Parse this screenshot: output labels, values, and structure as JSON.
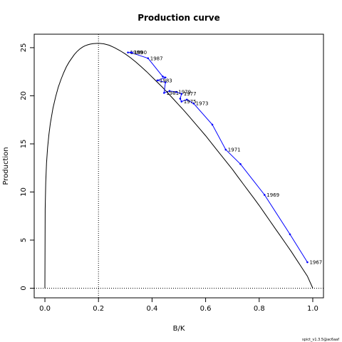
{
  "chart_data": {
    "type": "line",
    "title": "Production curve",
    "xlabel": "B/K",
    "ylabel": "Production",
    "xlim": [
      -0.04,
      1.04
    ],
    "ylim": [
      -1.0,
      26.4
    ],
    "x_ticks": [
      "0.0",
      "0.2",
      "0.4",
      "0.6",
      "0.8",
      "1.0"
    ],
    "x_tick_values": [
      0.0,
      0.2,
      0.4,
      0.6,
      0.8,
      1.0
    ],
    "y_ticks": [
      "0",
      "5",
      "10",
      "15",
      "20",
      "25"
    ],
    "y_tick_values": [
      0,
      5,
      10,
      15,
      20,
      25
    ],
    "bmsy_over_k": 0.2,
    "zero_line": 0,
    "grid": false,
    "curve_color": "#000000",
    "observed_color": "#0000ff",
    "curve": {
      "name": "",
      "x": [
        0.0,
        0.001,
        0.003,
        0.006,
        0.01,
        0.015,
        0.02,
        0.03,
        0.04,
        0.05,
        0.06,
        0.07,
        0.08,
        0.09,
        0.1,
        0.11,
        0.12,
        0.13,
        0.14,
        0.15,
        0.16,
        0.17,
        0.18,
        0.19,
        0.2,
        0.22,
        0.24,
        0.26,
        0.28,
        0.3,
        0.32,
        0.34,
        0.36,
        0.38,
        0.4,
        0.42,
        0.44,
        0.46,
        0.48,
        0.5,
        0.52,
        0.54,
        0.56,
        0.58,
        0.6,
        0.62,
        0.64,
        0.66,
        0.68,
        0.7,
        0.72,
        0.74,
        0.76,
        0.78,
        0.8,
        0.82,
        0.84,
        0.86,
        0.88,
        0.9,
        0.92,
        0.94,
        0.96,
        0.98,
        1.0
      ],
      "y": [
        0.0,
        8.2,
        11.0,
        13.0,
        14.6,
        16.0,
        17.1,
        18.7,
        19.9,
        20.9,
        21.7,
        22.4,
        23.0,
        23.5,
        23.9,
        24.3,
        24.6,
        24.85,
        25.05,
        25.2,
        25.3,
        25.37,
        25.42,
        25.44,
        25.45,
        25.4,
        25.25,
        25.0,
        24.7,
        24.35,
        23.95,
        23.5,
        23.0,
        22.5,
        21.95,
        21.4,
        20.85,
        20.25,
        19.65,
        19.05,
        18.45,
        17.8,
        17.15,
        16.5,
        15.85,
        15.15,
        14.45,
        13.75,
        13.05,
        12.35,
        11.6,
        10.85,
        10.1,
        9.35,
        8.6,
        7.8,
        7.0,
        6.2,
        5.4,
        4.6,
        3.8,
        2.95,
        2.1,
        1.25,
        0.0
      ]
    },
    "series": [
      {
        "name": "",
        "x": [
          0.98,
          0.915,
          0.82,
          0.73,
          0.675,
          0.625,
          0.555,
          0.53,
          0.51,
          0.505,
          0.51,
          0.49,
          0.465,
          0.445,
          0.45,
          0.42,
          0.45,
          0.44,
          0.385,
          0.32,
          0.31,
          0.325
        ],
        "y": [
          2.7,
          5.6,
          9.7,
          12.9,
          14.4,
          17.0,
          19.2,
          19.6,
          19.4,
          19.7,
          20.2,
          20.4,
          20.5,
          20.3,
          21.4,
          21.6,
          21.9,
          22.0,
          23.9,
          24.5,
          24.5,
          24.5
        ],
        "point_labels": [
          "1967",
          "",
          "1969",
          "",
          "1971",
          "",
          "1973",
          "",
          "1975",
          "",
          "1977",
          "1979",
          "",
          "1981",
          "",
          "1983",
          "",
          "",
          "1987",
          "",
          "1989",
          "1990"
        ]
      }
    ],
    "annotations": [
      "spict_v1.3.5@ac6aaf"
    ]
  }
}
